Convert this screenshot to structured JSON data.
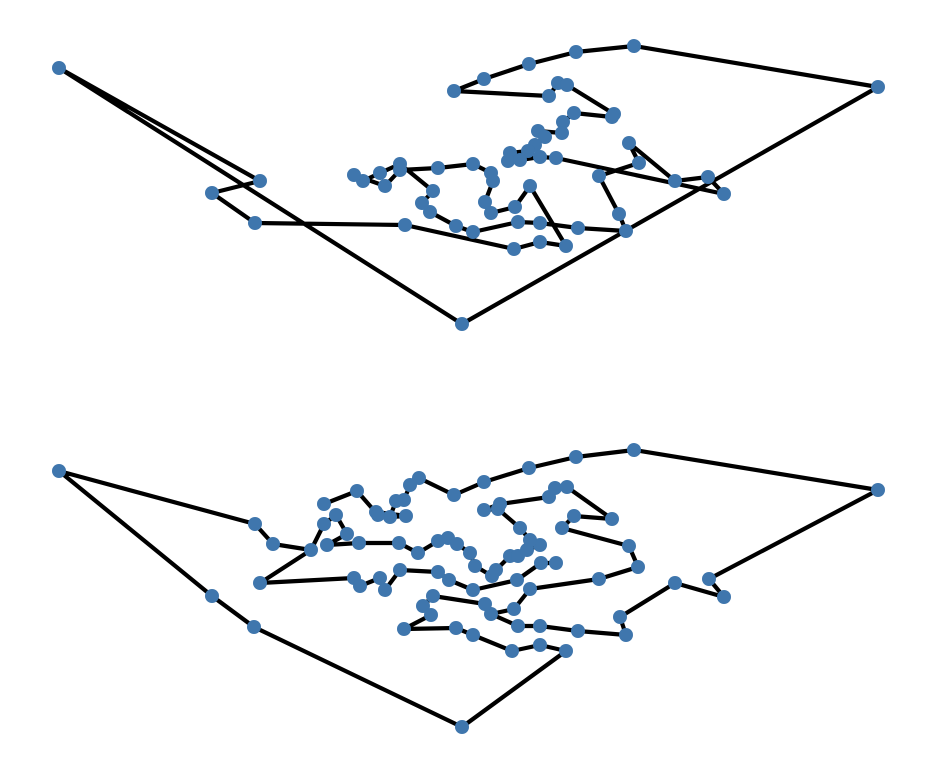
{
  "figure": {
    "description_type": "two-panel tour diagram (traveling-salesman style path through scattered points)"
  },
  "colors": {
    "background": "#ffffff",
    "node_fill": "#3f76ad",
    "edge_stroke": "#000000"
  },
  "panels": [
    {
      "id": "top",
      "tour": [
        [
          59,
          68
        ],
        [
          462,
          324
        ],
        [
          878,
          87
        ],
        [
          634,
          46
        ],
        [
          576,
          52
        ],
        [
          529,
          64
        ],
        [
          484,
          79
        ],
        [
          454,
          91
        ],
        [
          549,
          96
        ],
        [
          558,
          83
        ],
        [
          567,
          85
        ],
        [
          614,
          114
        ],
        [
          612,
          117
        ],
        [
          574,
          113
        ],
        [
          563,
          122
        ],
        [
          562,
          133
        ],
        [
          538,
          131
        ],
        [
          545,
          137
        ],
        [
          535,
          145
        ],
        [
          528,
          151
        ],
        [
          510,
          153
        ],
        [
          508,
          161
        ],
        [
          520,
          160
        ],
        [
          540,
          157
        ],
        [
          556,
          158
        ],
        [
          724,
          194
        ],
        [
          708,
          177
        ],
        [
          675,
          181
        ],
        [
          629,
          143
        ],
        [
          639,
          163
        ],
        [
          599,
          176
        ],
        [
          619,
          214
        ],
        [
          626,
          231
        ],
        [
          578,
          228
        ],
        [
          540,
          223
        ],
        [
          518,
          222
        ],
        [
          473,
          232
        ],
        [
          456,
          226
        ],
        [
          430,
          212
        ],
        [
          422,
          203
        ],
        [
          433,
          191
        ],
        [
          400,
          164
        ],
        [
          380,
          173
        ],
        [
          363,
          181
        ],
        [
          354,
          175
        ],
        [
          385,
          186
        ],
        [
          400,
          170
        ],
        [
          438,
          168
        ],
        [
          473,
          164
        ],
        [
          491,
          173
        ],
        [
          493,
          181
        ],
        [
          485,
          202
        ],
        [
          491,
          213
        ],
        [
          515,
          207
        ],
        [
          530,
          186
        ],
        [
          566,
          246
        ],
        [
          540,
          242
        ],
        [
          514,
          249
        ],
        [
          405,
          225
        ],
        [
          255,
          223
        ],
        [
          212,
          193
        ],
        [
          260,
          181
        ],
        [
          59,
          68
        ]
      ]
    },
    {
      "id": "bottom",
      "tour": [
        [
          59,
          471
        ],
        [
          255,
          524
        ],
        [
          273,
          544
        ],
        [
          311,
          550
        ],
        [
          324,
          524
        ],
        [
          336,
          515
        ],
        [
          347,
          534
        ],
        [
          327,
          545
        ],
        [
          359,
          543
        ],
        [
          399,
          543
        ],
        [
          418,
          553
        ],
        [
          438,
          541
        ],
        [
          448,
          538
        ],
        [
          457,
          544
        ],
        [
          470,
          553
        ],
        [
          475,
          566
        ],
        [
          492,
          576
        ],
        [
          496,
          570
        ],
        [
          510,
          556
        ],
        [
          518,
          556
        ],
        [
          527,
          550
        ],
        [
          540,
          545
        ],
        [
          530,
          540
        ],
        [
          520,
          528
        ],
        [
          498,
          509
        ],
        [
          484,
          510
        ],
        [
          500,
          504
        ],
        [
          549,
          497
        ],
        [
          555,
          488
        ],
        [
          567,
          487
        ],
        [
          612,
          519
        ],
        [
          574,
          516
        ],
        [
          562,
          528
        ],
        [
          629,
          546
        ],
        [
          638,
          567
        ],
        [
          599,
          579
        ],
        [
          530,
          589
        ],
        [
          514,
          609
        ],
        [
          491,
          614
        ],
        [
          485,
          604
        ],
        [
          433,
          596
        ],
        [
          423,
          606
        ],
        [
          431,
          615
        ],
        [
          404,
          629
        ],
        [
          456,
          628
        ],
        [
          473,
          635
        ],
        [
          512,
          651
        ],
        [
          540,
          645
        ],
        [
          566,
          651
        ],
        [
          462,
          727
        ],
        [
          254,
          627
        ],
        [
          212,
          596
        ],
        [
          59,
          471
        ]
      ],
      "extra_edges": [
        [
          [
            260,
            583
          ],
          [
            354,
            578
          ],
          [
            360,
            586
          ],
          [
            380,
            578
          ],
          [
            385,
            590
          ],
          [
            400,
            570
          ],
          [
            438,
            572
          ],
          [
            449,
            580
          ],
          [
            473,
            590
          ],
          [
            517,
            580
          ],
          [
            541,
            563
          ],
          [
            556,
            563
          ]
        ],
        [
          [
            260,
            583
          ],
          [
            311,
            550
          ]
        ],
        [
          [
            878,
            490
          ],
          [
            709,
            579
          ],
          [
            724,
            597
          ],
          [
            675,
            583
          ],
          [
            620,
            617
          ],
          [
            626,
            635
          ],
          [
            578,
            631
          ],
          [
            540,
            626
          ],
          [
            518,
            626
          ],
          [
            491,
            614
          ]
        ],
        [
          [
            878,
            490
          ],
          [
            634,
            450
          ],
          [
            576,
            457
          ],
          [
            529,
            468
          ],
          [
            484,
            482
          ],
          [
            454,
            495
          ],
          [
            419,
            478
          ],
          [
            410,
            485
          ],
          [
            404,
            500
          ],
          [
            396,
            501
          ],
          [
            390,
            517
          ],
          [
            406,
            516
          ],
          [
            376,
            512
          ],
          [
            378,
            515
          ],
          [
            357,
            491
          ],
          [
            324,
            504
          ]
        ]
      ]
    }
  ]
}
